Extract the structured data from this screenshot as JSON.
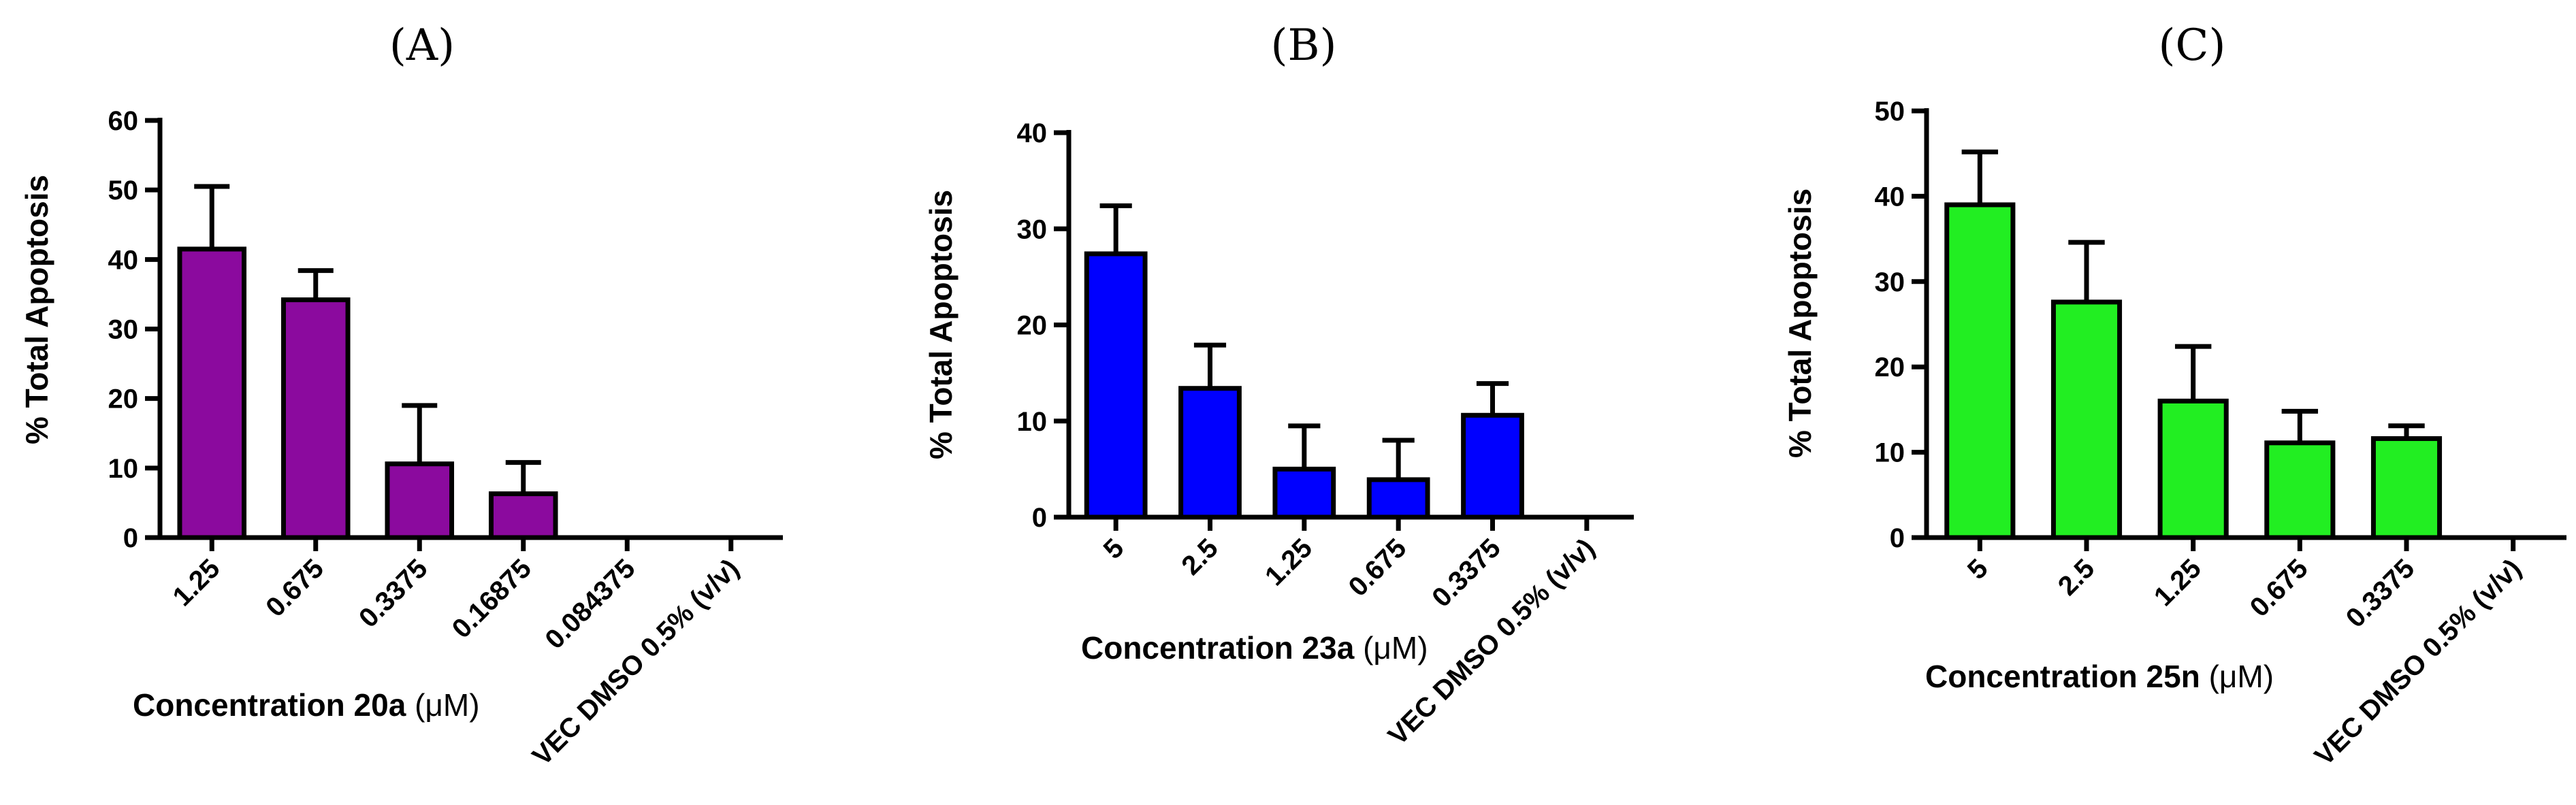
{
  "chart_data": [
    {
      "type": "bar",
      "panel_label": "(A)",
      "ylabel": "% Total Apoptosis",
      "xlabel": "Concentration 20a",
      "xlabel_unit": "(μM)",
      "ylim": [
        0,
        60
      ],
      "yticks": [
        0,
        10,
        20,
        30,
        40,
        50,
        60
      ],
      "categories": [
        "1.25",
        "0.675",
        "0.3375",
        "0.16875",
        "0.084375",
        "VEC DMSO 0.5% (v/v)"
      ],
      "values": [
        41.5,
        34.2,
        10.6,
        6.3,
        0,
        0
      ],
      "errors": [
        9.0,
        4.2,
        8.4,
        4.5,
        0,
        0
      ],
      "color": "#8B0A9E"
    },
    {
      "type": "bar",
      "panel_label": "(B)",
      "ylabel": "% Total Apoptosis",
      "xlabel": "Concentration 23a",
      "xlabel_unit": "(μM)",
      "ylim": [
        0,
        40
      ],
      "yticks": [
        0,
        10,
        20,
        30,
        40
      ],
      "categories": [
        "5",
        "2.5",
        "1.25",
        "0.675",
        "0.3375",
        "VEC  DMSO 0.5% (v/v)"
      ],
      "values": [
        27.4,
        13.4,
        5.0,
        3.9,
        10.6,
        0
      ],
      "errors": [
        5.0,
        4.5,
        4.5,
        4.1,
        3.3,
        0
      ],
      "color": "#0000FF"
    },
    {
      "type": "bar",
      "panel_label": "(C)",
      "ylabel": "% Total Apoptosis",
      "xlabel": "Concentration  25n",
      "xlabel_unit": "(μM)",
      "ylim": [
        0,
        50
      ],
      "yticks": [
        0,
        10,
        20,
        30,
        40,
        50
      ],
      "categories": [
        "5",
        "2.5",
        "1.25",
        "0.675",
        "0.3375",
        "VEC  DMSO 0.5% (v/v)"
      ],
      "values": [
        39.0,
        27.6,
        16.0,
        11.1,
        11.6,
        0
      ],
      "errors": [
        6.2,
        7.0,
        6.4,
        3.7,
        1.5,
        0
      ],
      "color": "#22EE22"
    }
  ]
}
